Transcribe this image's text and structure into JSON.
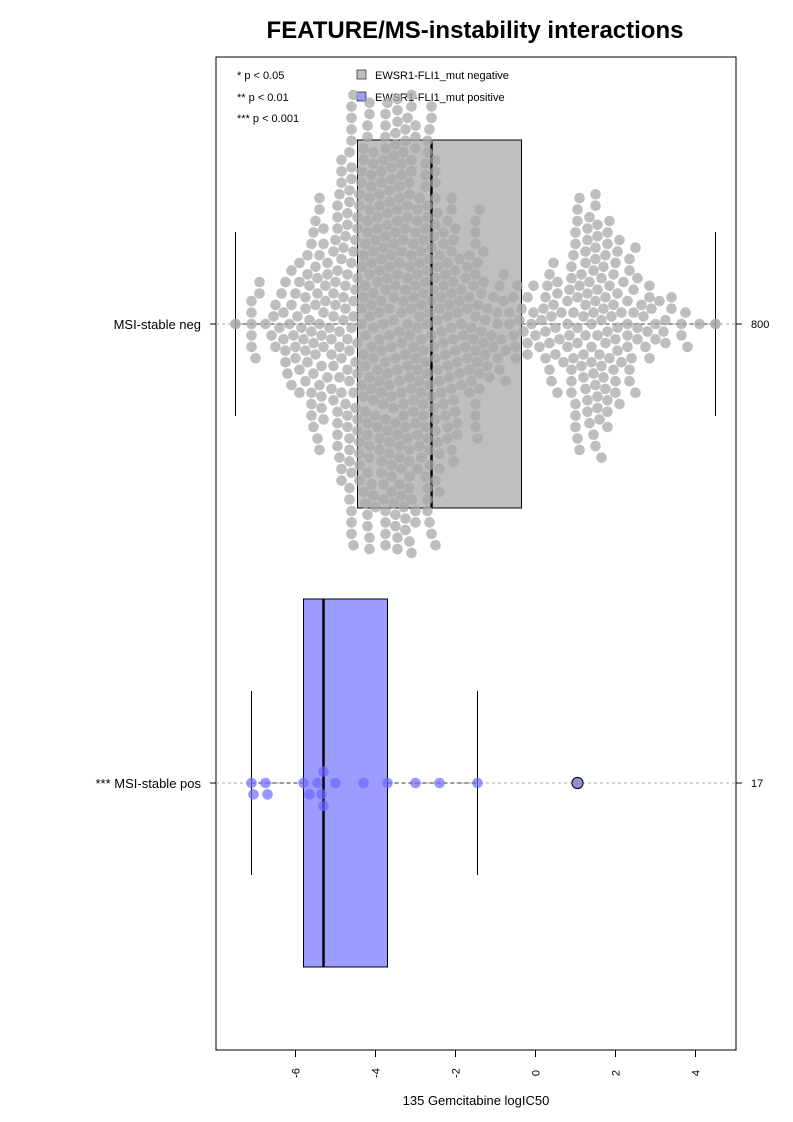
{
  "chart_data": {
    "type": "boxplot-beeswarm",
    "title": "FEATURE/MS-instability interactions",
    "xlabel": "135 Gemcitabine logIC50",
    "xlim": [
      -8,
      5
    ],
    "xticks": [
      -6,
      -4,
      -2,
      0,
      2,
      4
    ],
    "grid": false,
    "legend_position": "top-left",
    "significance_legend": [
      "* p < 0.05",
      "** p < 0.01",
      "*** p < 0.001"
    ],
    "colors": {
      "negative_box": "#bfbfbf",
      "negative_point": "#a8a8a8",
      "positive_box": "#9c9cff",
      "positive_point": "#6b6bff",
      "highlight_point": "#8f8fd8"
    },
    "series": [
      {
        "name": "EWSR1-FLI1_mut negative",
        "category": "MSI-stable neg",
        "count": "800",
        "stats": {
          "whisker_low": -7.5,
          "q1": -4.45,
          "median": -2.6,
          "q3": -0.35,
          "whisker_high": 4.5
        },
        "points": [
          -7.5,
          4.5
        ]
      },
      {
        "name": "EWSR1-FLI1_mut positive",
        "category": "*** MSI-stable pos",
        "count": "17",
        "stats": {
          "whisker_low": -7.1,
          "q1": -5.8,
          "median": -5.3,
          "q3": -3.7,
          "whisker_high": -1.45
        },
        "points": [
          -7.1,
          -7.05,
          -6.75,
          -6.7,
          -5.8,
          -5.65,
          -5.45,
          -5.35,
          -5.3,
          -5.3,
          -5.0,
          -4.3,
          -3.7,
          -3.0,
          -2.4,
          -1.45
        ],
        "highlight_point": 1.05
      }
    ]
  }
}
